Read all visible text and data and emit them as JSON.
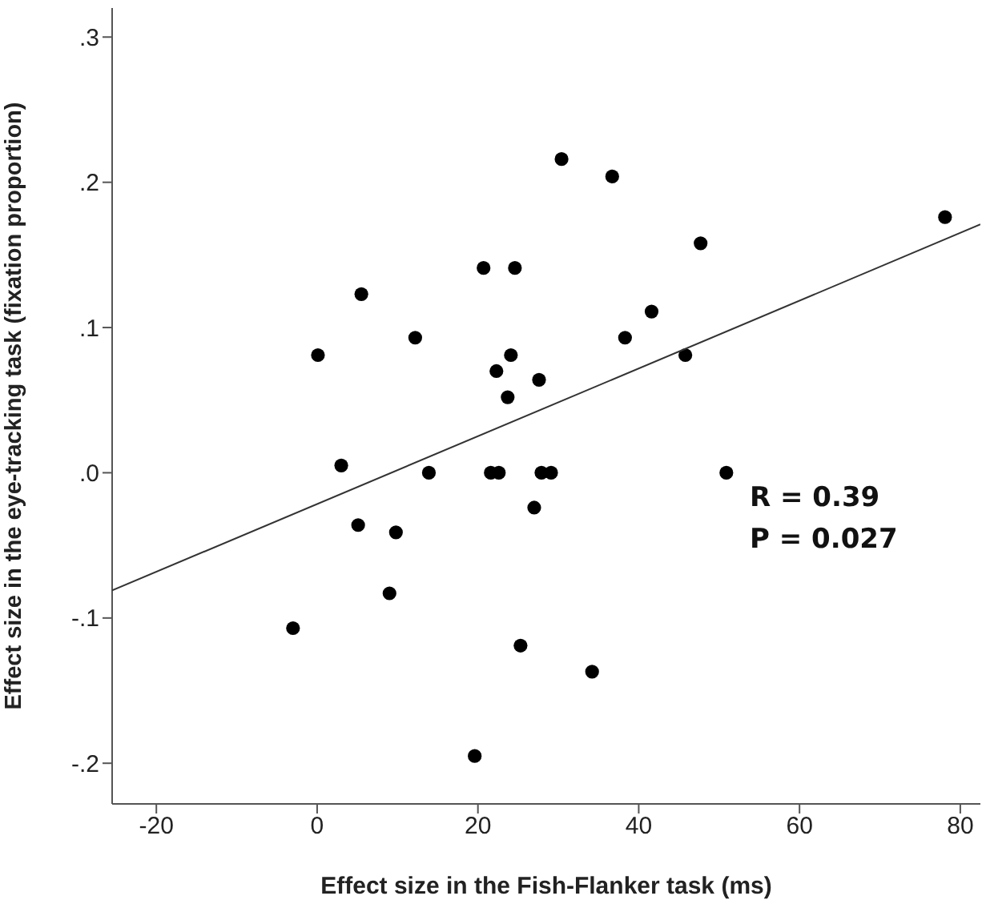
{
  "chart_data": {
    "type": "scatter",
    "xlabel": "Effect size in the Fish-Flanker task (ms)",
    "ylabel": "Effect size in the eye-tracking task (fixation proportion)",
    "annotations": [
      "R = 0.39",
      "P = 0.027"
    ],
    "xlim": [
      -25.5,
      82.5
    ],
    "ylim": [
      -0.228,
      0.32
    ],
    "xticks": [
      -20,
      0,
      20,
      40,
      60,
      80
    ],
    "yticks": [
      {
        "value": -0.2,
        "label": "-.2"
      },
      {
        "value": -0.1,
        "label": "-.1"
      },
      {
        "value": 0,
        "label": ".0"
      },
      {
        "value": 0.1,
        "label": ".1"
      },
      {
        "value": 0.2,
        "label": ".2"
      },
      {
        "value": 0.3,
        "label": ".3"
      }
    ],
    "grid": false,
    "marker": "circle",
    "series": [
      {
        "color": "#000000",
        "x": [
          30.4,
          20.7,
          24.6,
          5.5,
          12.2,
          0.1,
          24.1,
          22.3,
          27.6,
          23.7,
          36.7,
          78.1,
          47.7,
          41.6,
          38.3,
          45.8,
          3.0,
          13.9,
          21.6,
          22.6,
          27.9,
          29.1,
          27.0,
          5.1,
          9.8,
          9.0,
          -3.0,
          25.3,
          19.6,
          50.9,
          34.2
        ],
        "values": [
          0.216,
          0.141,
          0.141,
          0.123,
          0.093,
          0.081,
          0.081,
          0.07,
          0.064,
          0.052,
          0.204,
          0.176,
          0.158,
          0.111,
          0.093,
          0.081,
          0.005,
          0.0,
          0.0,
          0.0,
          0.0,
          0.0,
          -0.024,
          -0.036,
          -0.041,
          -0.083,
          -0.107,
          -0.119,
          -0.195,
          0.0,
          -0.137
        ]
      },
      {
        "type": "line",
        "marker": "none",
        "color": "#333333",
        "x": [
          -25.5,
          82.5
        ],
        "values": [
          -0.081,
          0.171
        ]
      }
    ]
  }
}
